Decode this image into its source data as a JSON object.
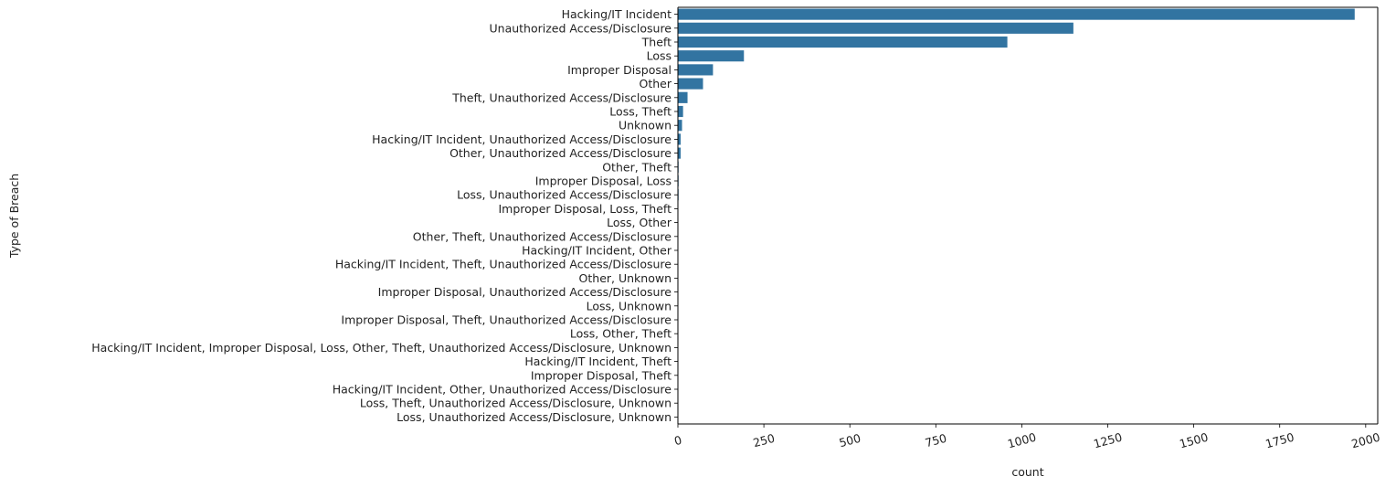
{
  "chart_data": {
    "type": "bar",
    "orientation": "horizontal",
    "title": "",
    "xlabel": "count",
    "ylabel": "Type of Breach",
    "xlim": [
      0,
      2035
    ],
    "xticks": [
      0,
      250,
      500,
      750,
      1000,
      1250,
      1500,
      1750,
      2000
    ],
    "xtick_rotation": -15,
    "grid": false,
    "legend": "none",
    "bar_color": "#3274a1",
    "categories": [
      "Hacking/IT Incident",
      "Unauthorized Access/Disclosure",
      "Theft",
      "Loss",
      "Improper Disposal",
      "Other",
      "Theft, Unauthorized Access/Disclosure",
      "Loss, Theft",
      "Unknown",
      "Hacking/IT Incident, Unauthorized Access/Disclosure",
      "Other, Unauthorized Access/Disclosure",
      "Other, Theft",
      "Improper Disposal, Loss",
      "Loss, Unauthorized Access/Disclosure",
      "Improper Disposal, Loss, Theft",
      "Loss, Other",
      "Other, Theft, Unauthorized Access/Disclosure",
      "Hacking/IT Incident, Other",
      "Hacking/IT Incident, Theft, Unauthorized Access/Disclosure",
      "Other, Unknown",
      "Improper Disposal, Unauthorized Access/Disclosure",
      "Loss, Unknown",
      "Improper Disposal, Theft, Unauthorized Access/Disclosure",
      "Loss, Other, Theft",
      "Hacking/IT Incident, Improper Disposal, Loss, Other, Theft, Unauthorized Access/Disclosure, Unknown",
      "Hacking/IT Incident, Theft",
      "Improper Disposal, Theft",
      "Hacking/IT Incident, Other, Unauthorized Access/Disclosure",
      "Loss, Theft, Unauthorized Access/Disclosure, Unknown",
      "Loss, Unauthorized Access/Disclosure, Unknown"
    ],
    "values": [
      1968,
      1150,
      958,
      192,
      102,
      73,
      28,
      15,
      12,
      8,
      8,
      2,
      2,
      2,
      1,
      1,
      1,
      1,
      1,
      1,
      1,
      1,
      1,
      1,
      1,
      1,
      1,
      1,
      1,
      1
    ]
  }
}
